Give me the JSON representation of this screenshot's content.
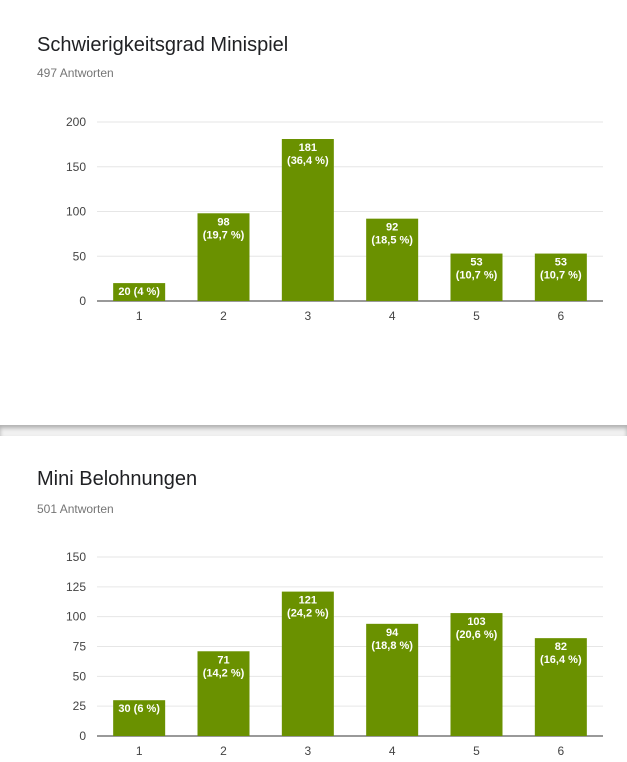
{
  "chart_data": [
    {
      "type": "bar",
      "title": "Schwierigkeitsgrad Minispiel",
      "subtitle": "497 Antworten",
      "categories": [
        "1",
        "2",
        "3",
        "4",
        "5",
        "6"
      ],
      "values": [
        20,
        98,
        181,
        92,
        53,
        53
      ],
      "data_labels": [
        "20 (4 %)",
        "98\n(19,7 %)",
        "181\n(36,4 %)",
        "92\n(18,5 %)",
        "53\n(10,7 %)",
        "53\n(10,7 %)"
      ],
      "yticks": [
        0,
        50,
        100,
        150,
        200
      ],
      "ylim": [
        0,
        200
      ],
      "grid": true,
      "bar_color": "#6a9100"
    },
    {
      "type": "bar",
      "title": "Mini Belohnungen",
      "subtitle": "501 Antworten",
      "categories": [
        "1",
        "2",
        "3",
        "4",
        "5",
        "6"
      ],
      "values": [
        30,
        71,
        121,
        94,
        103,
        82
      ],
      "data_labels": [
        "30 (6 %)",
        "71\n(14,2 %)",
        "121\n(24,2 %)",
        "94\n(18,8 %)",
        "103\n(20,6 %)",
        "82\n(16,4 %)"
      ],
      "yticks": [
        0,
        25,
        50,
        75,
        100,
        125,
        150
      ],
      "ylim": [
        0,
        150
      ],
      "grid": true,
      "bar_color": "#6a9100"
    }
  ]
}
